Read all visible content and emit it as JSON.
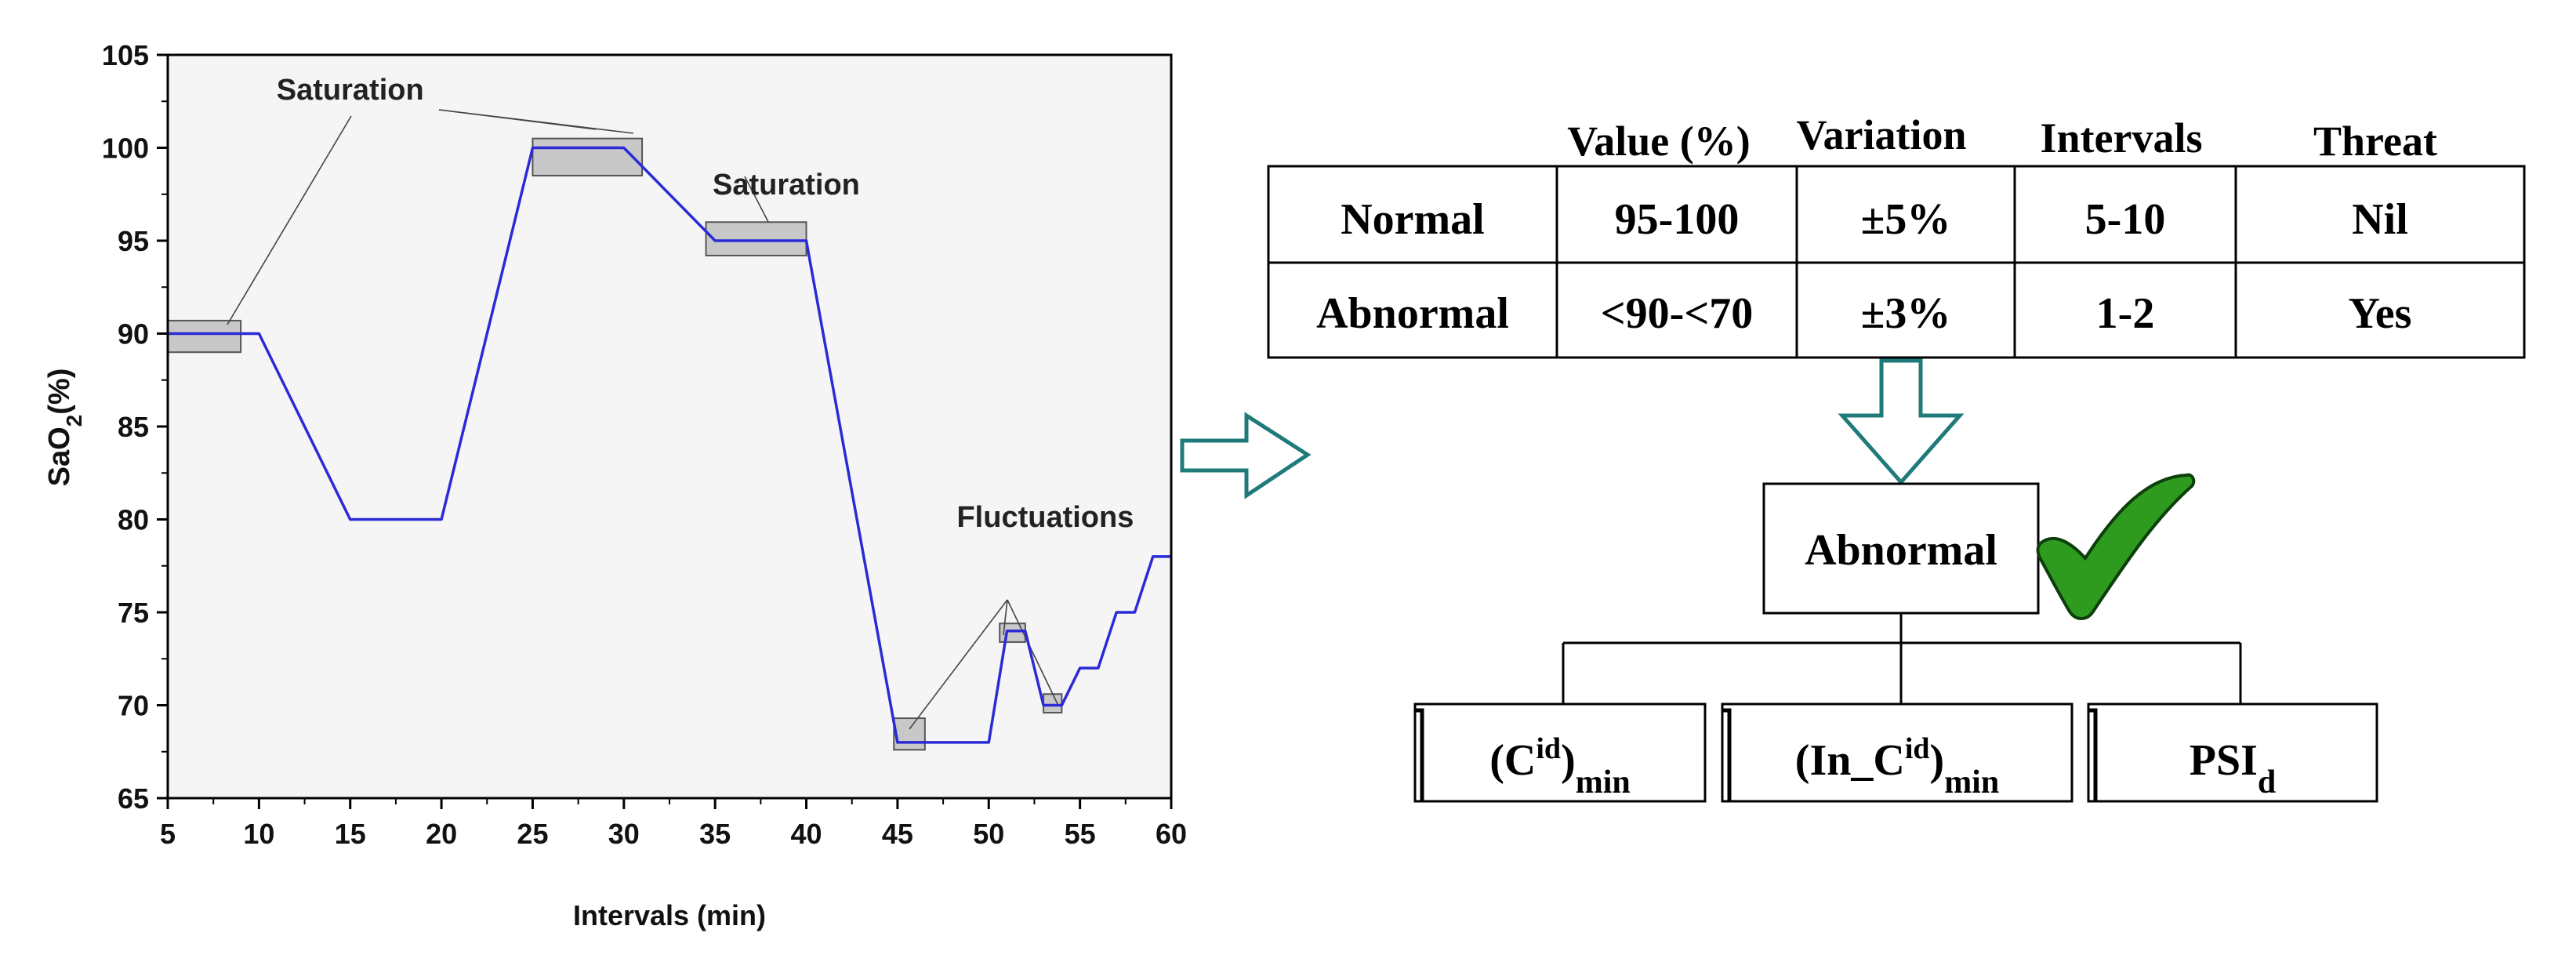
{
  "chart_data": {
    "type": "line",
    "xlabel": "Intervals (min)",
    "ylabel_main": "SaO",
    "ylabel_sub": "2",
    "ylabel_unit": "(%)",
    "xlim": [
      5,
      60
    ],
    "ylim": [
      65,
      105
    ],
    "xticks": [
      5,
      10,
      15,
      20,
      25,
      30,
      35,
      40,
      45,
      50,
      55,
      60
    ],
    "yticks": [
      65,
      70,
      75,
      80,
      85,
      90,
      95,
      100,
      105
    ],
    "series": [
      {
        "color": "#2b2bd6",
        "points": [
          [
            5,
            90
          ],
          [
            10,
            90
          ],
          [
            15,
            80
          ],
          [
            20,
            80
          ],
          [
            25,
            100
          ],
          [
            30,
            100
          ],
          [
            35,
            95
          ],
          [
            40,
            95
          ],
          [
            45,
            68
          ],
          [
            50,
            68
          ],
          [
            51,
            74
          ],
          [
            52,
            74
          ],
          [
            53,
            70
          ],
          [
            54,
            70
          ],
          [
            55,
            72
          ],
          [
            56,
            72
          ],
          [
            57,
            75
          ],
          [
            58,
            75
          ],
          [
            59,
            78
          ],
          [
            60,
            78
          ]
        ]
      }
    ],
    "highlight_boxes": [
      {
        "x": [
          5,
          9
        ],
        "y": [
          89,
          90.7
        ]
      },
      {
        "x": [
          25,
          31
        ],
        "y": [
          98.5,
          100.5
        ]
      },
      {
        "x": [
          34.5,
          40
        ],
        "y": [
          94.2,
          96
        ]
      },
      {
        "x": [
          44.8,
          46.5
        ],
        "y": [
          67.6,
          69.3
        ]
      },
      {
        "x": [
          50.6,
          52
        ],
        "y": [
          73.4,
          74.4
        ]
      },
      {
        "x": [
          53,
          54
        ],
        "y": [
          69.6,
          70.6
        ]
      }
    ],
    "annotations": [
      {
        "text": "Saturation",
        "x": 15,
        "y": 102.6
      },
      {
        "text": "Saturation",
        "x": 38.9,
        "y": 97.5
      },
      {
        "text": "Fluctuations",
        "x": 53.1,
        "y": 79.6
      }
    ]
  },
  "table": {
    "headers": [
      "Value (%)",
      "Variation",
      "Intervals",
      "Threat"
    ],
    "rows": [
      [
        "Normal",
        "95-100",
        "±5%",
        "5-10",
        "Nil"
      ],
      [
        "Abnormal",
        "<90-<70",
        "±3%",
        "1-2",
        "Yes"
      ]
    ]
  },
  "result": {
    "label": "Abnormal",
    "check_color": "#2e9a1e"
  },
  "outputs": [
    {
      "base": "(C",
      "sup": "id",
      "end": ")",
      "sub": "min"
    },
    {
      "base": "(In_C",
      "sup": "id",
      "end": ")",
      "sub": "min"
    },
    {
      "base": "PSI",
      "sup": "",
      "end": "",
      "sub": "d"
    }
  ],
  "arrow_color": "#1f7a7a"
}
